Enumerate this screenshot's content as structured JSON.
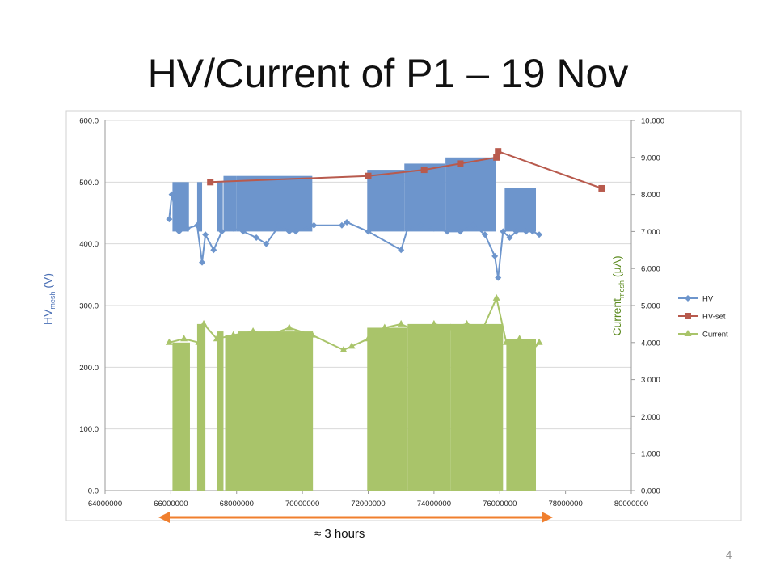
{
  "slide": {
    "title": "HV/Current of P1 – 19 Nov",
    "page_number": "4",
    "annotation": "≈ 3 hours"
  },
  "colors": {
    "hv": "#6d95cc",
    "hv_set": "#b85a4d",
    "current": "#a9c46a",
    "arrow": "#f07f2e",
    "hv_axis_label": "#4a6fb5",
    "current_axis_label": "#5b8a1e"
  },
  "chart_data": {
    "type": "scatter",
    "xlabel": "",
    "ylabel_left": {
      "main": "HV",
      "sub": "mesh",
      "unit": "(V)"
    },
    "ylabel_right": {
      "main": "Current",
      "sub": "mesh",
      "unit": "(µA)"
    },
    "xlim": [
      64000000,
      80000000
    ],
    "x_ticks": [
      "64000000",
      "66000000",
      "68000000",
      "70000000",
      "72000000",
      "74000000",
      "76000000",
      "78000000",
      "80000000"
    ],
    "ylim_left": [
      0,
      600
    ],
    "y_ticks_left": [
      "0.0",
      "100.0",
      "200.0",
      "300.0",
      "400.0",
      "500.0",
      "600.0"
    ],
    "ylim_right": [
      0,
      10
    ],
    "y_ticks_right": [
      "0.000",
      "1.000",
      "2.000",
      "3.000",
      "4.000",
      "5.000",
      "6.000",
      "7.000",
      "8.000",
      "9.000",
      "10.000"
    ],
    "grid": "horizontal",
    "legend_position": "right",
    "series": [
      {
        "name": "HV",
        "axis": "left",
        "marker": "diamond",
        "x": [
          65950000,
          66030000,
          66250000,
          66500000,
          66800000,
          66950000,
          67050000,
          67300000,
          67550000,
          67900000,
          68200000,
          68600000,
          68900000,
          69300000,
          69600000,
          69800000,
          70350000,
          71200000,
          71350000,
          72000000,
          73000000,
          73200000,
          73600000,
          74000000,
          74400000,
          74800000,
          75200000,
          75550000,
          75850000,
          75950000,
          76100000,
          76300000,
          76500000,
          76800000,
          77000000,
          77200000
        ],
        "y": [
          440,
          480,
          420,
          425,
          430,
          370,
          415,
          390,
          420,
          425,
          420,
          410,
          400,
          430,
          420,
          420,
          430,
          430,
          435,
          420,
          390,
          425,
          430,
          425,
          420,
          420,
          430,
          415,
          380,
          345,
          420,
          410,
          420,
          420,
          420,
          415
        ]
      },
      {
        "name": "HV-set",
        "axis": "left",
        "marker": "square",
        "x": [
          67200000,
          72000000,
          73700000,
          74800000,
          75900000,
          75950000,
          79100000
        ],
        "y": [
          500,
          510,
          520,
          530,
          540,
          550,
          490
        ]
      },
      {
        "name": "Current",
        "axis": "right",
        "marker": "triangle",
        "x": [
          65950000,
          66400000,
          66850000,
          67000000,
          67400000,
          67900000,
          68500000,
          69000000,
          69600000,
          70300000,
          71250000,
          71500000,
          72000000,
          72500000,
          73000000,
          73500000,
          74000000,
          74500000,
          75000000,
          75500000,
          75900000,
          76200000,
          76600000,
          77000000,
          77200000
        ],
        "y": [
          4.0,
          4.1,
          4.0,
          4.5,
          4.1,
          4.2,
          4.3,
          4.2,
          4.4,
          4.2,
          3.8,
          3.9,
          4.1,
          4.4,
          4.5,
          4.3,
          4.5,
          4.4,
          4.5,
          4.4,
          5.2,
          4.0,
          4.1,
          3.8,
          4.0
        ]
      }
    ],
    "dense_ranges": {
      "HV": [
        [
          66050000,
          66550000,
          420,
          500
        ],
        [
          66800000,
          66950000,
          420,
          500
        ],
        [
          67400000,
          67580000,
          420,
          500
        ],
        [
          67600000,
          68000000,
          420,
          510
        ],
        [
          68000000,
          70300000,
          420,
          510
        ],
        [
          71970000,
          73100000,
          420,
          520
        ],
        [
          73100000,
          74350000,
          420,
          530
        ],
        [
          74350000,
          75880000,
          420,
          540
        ],
        [
          76150000,
          77100000,
          420,
          490
        ]
      ],
      "Current": [
        [
          66050000,
          66580000,
          0,
          4.0
        ],
        [
          66800000,
          67050000,
          0,
          4.5
        ],
        [
          67400000,
          67600000,
          0,
          4.3
        ],
        [
          67650000,
          68050000,
          0,
          4.2
        ],
        [
          68050000,
          70320000,
          0,
          4.3
        ],
        [
          71970000,
          73200000,
          0,
          4.4
        ],
        [
          73200000,
          74500000,
          0,
          4.5
        ],
        [
          74500000,
          76100000,
          0,
          4.5
        ],
        [
          76200000,
          77100000,
          0,
          4.1
        ]
      ]
    }
  }
}
